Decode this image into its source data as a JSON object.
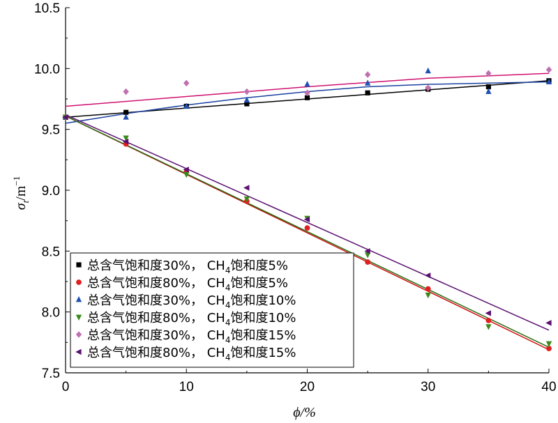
{
  "chart_data": {
    "type": "scatter",
    "xlabel": "ϕ/%",
    "ylabel": "σt/m⁻¹",
    "ylabel_main": "σ",
    "ylabel_sub": "t",
    "ylabel_unit": "/m",
    "ylabel_sup": "−1",
    "xlim": [
      0,
      40
    ],
    "ylim": [
      7.5,
      10.5
    ],
    "xticks": [
      "0",
      "10",
      "20",
      "30",
      "40"
    ],
    "yticks": [
      "7.5",
      "8.0",
      "8.5",
      "9.0",
      "9.5",
      "10.0",
      "10.5"
    ],
    "legend_position": "lower-left",
    "series": [
      {
        "name": "总含气饱和度30%，CH4饱和度5%",
        "name_a": "总含气饱和度30%， CH",
        "name_sub": "4",
        "name_b": "饱和度5%",
        "marker": "square",
        "marker_color": "#000000",
        "line_color": "#000000",
        "x": [
          0,
          5,
          10,
          15,
          20,
          25,
          30,
          35,
          40
        ],
        "values": [
          9.6,
          9.64,
          9.69,
          9.71,
          9.76,
          9.8,
          9.83,
          9.85,
          9.9
        ],
        "fit": [
          9.6,
          9.9
        ]
      },
      {
        "name": "总含气饱和度80%，CH4饱和度5%",
        "name_a": "总含气饱和度80%， CH",
        "name_sub": "4",
        "name_b": "饱和度5%",
        "marker": "circle",
        "marker_color": "#e02020",
        "line_color": "#d01010",
        "x": [
          0,
          5,
          10,
          15,
          20,
          25,
          30,
          35,
          40
        ],
        "values": [
          9.6,
          9.38,
          9.15,
          8.91,
          8.69,
          8.41,
          8.19,
          7.93,
          7.7
        ],
        "fit": [
          9.61,
          7.69
        ]
      },
      {
        "name": "总含气饱和度30%，CH4饱和度10%",
        "name_a": "总含气饱和度30%， CH",
        "name_sub": "4",
        "name_b": "饱和度10%",
        "marker": "triangle-up",
        "marker_color": "#2050b0",
        "line_color": "#1a40a0",
        "x": [
          0,
          5,
          10,
          15,
          20,
          25,
          30,
          35,
          40
        ],
        "values": [
          9.6,
          9.6,
          9.69,
          9.74,
          9.87,
          9.88,
          9.98,
          9.81,
          9.89
        ],
        "fit_curve": [
          [
            0,
            9.55
          ],
          [
            5,
            9.63
          ],
          [
            10,
            9.7
          ],
          [
            15,
            9.76
          ],
          [
            20,
            9.81
          ],
          [
            25,
            9.85
          ],
          [
            30,
            9.87
          ],
          [
            35,
            9.88
          ],
          [
            40,
            9.89
          ]
        ]
      },
      {
        "name": "总含气饱和度80%，CH4饱和度10%",
        "name_a": "总含气饱和度80%， CH",
        "name_sub": "4",
        "name_b": "饱和度10%",
        "marker": "triangle-down",
        "marker_color": "#3a8a1a",
        "line_color": "#2a6a10",
        "x": [
          0,
          5,
          10,
          15,
          20,
          25,
          30,
          35,
          40
        ],
        "values": [
          9.6,
          9.43,
          9.13,
          8.93,
          8.77,
          8.47,
          8.14,
          7.88,
          7.74
        ],
        "fit": [
          9.61,
          7.71
        ]
      },
      {
        "name": "总含气饱和度30%，CH4饱和度15%",
        "name_a": "总含气饱和度30%， CH",
        "name_sub": "4",
        "name_b": "饱和度15%",
        "marker": "diamond",
        "marker_color": "#c070b0",
        "line_color": "#d01070",
        "x": [
          5,
          10,
          15,
          20,
          25,
          30,
          35,
          40
        ],
        "values": [
          9.81,
          9.88,
          9.81,
          9.8,
          9.95,
          9.84,
          9.96,
          9.99
        ],
        "fit_curve": [
          [
            0,
            9.69
          ],
          [
            10,
            9.77
          ],
          [
            20,
            9.85
          ],
          [
            30,
            9.92
          ],
          [
            40,
            9.96
          ]
        ]
      },
      {
        "name": "总含气饱和度80%，CH4饱和度15%",
        "name_a": "总含气饱和度80%， CH",
        "name_sub": "4",
        "name_b": "饱和度15%",
        "marker": "triangle-left",
        "marker_color": "#5a1070",
        "line_color": "#5a1070",
        "x": [
          0,
          5,
          10,
          15,
          20,
          25,
          30,
          35,
          40
        ],
        "values": [
          9.6,
          9.4,
          9.17,
          9.02,
          8.76,
          8.5,
          8.3,
          7.99,
          7.91
        ],
        "fit": [
          9.62,
          7.85
        ]
      }
    ]
  }
}
